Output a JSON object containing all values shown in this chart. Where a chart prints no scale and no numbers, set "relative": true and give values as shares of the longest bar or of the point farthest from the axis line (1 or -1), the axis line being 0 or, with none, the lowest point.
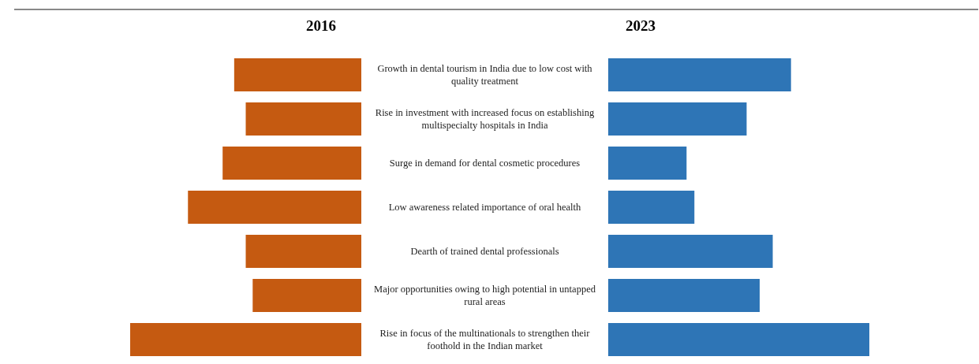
{
  "chart_data": [
    {
      "type": "bar",
      "orientation": "horizontal",
      "relative": true,
      "title": "2016",
      "categories": [
        "Growth in dental tourism in India due to low cost with quality treatment",
        "Rise in investment with increased focus on establishing multispecialty hospitals in India",
        "Surge in demand for dental cosmetic procedures",
        "Low awareness related importance of oral health",
        "Dearth of trained dental professionals",
        "Major opportunities owing to high potential in untapped rural areas",
        "Rise in focus of the multinationals to strengthen their foothold in the Indian market"
      ],
      "series": [
        {
          "color": "#c55a11",
          "values": [
            0.55,
            0.5,
            0.6,
            0.75,
            0.5,
            0.47,
            1
          ]
        }
      ]
    },
    {
      "type": "bar",
      "orientation": "horizontal",
      "relative": true,
      "title": "2023",
      "categories": [
        null,
        null,
        null,
        null,
        null,
        null,
        null
      ],
      "series": [
        {
          "color": "#2e75b6",
          "values": [
            0.7,
            0.53,
            0.3,
            0.33,
            0.63,
            0.58,
            1
          ]
        }
      ]
    }
  ]
}
